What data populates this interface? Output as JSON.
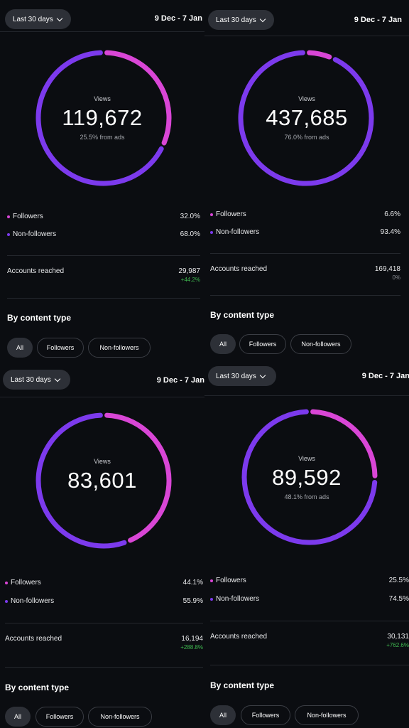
{
  "colors": {
    "followers": "#d946d6",
    "non_followers": "#7c3aed",
    "positive": "#3fb950",
    "neutral": "#8b8e94"
  },
  "panels": [
    {
      "range_label": "Last 30 days",
      "dates": "9 Dec - 7 Jan",
      "views_label": "Views",
      "views_value": "119,672",
      "ads_text": "25.5% from ads",
      "followers_fraction": 0.32,
      "followers_label": "Followers",
      "followers_pct": "32.0%",
      "non_followers_label": "Non-followers",
      "non_followers_pct": "68.0%",
      "accounts_label": "Accounts reached",
      "accounts_value": "29,987",
      "accounts_change": "+44.2%",
      "accounts_change_type": "positive",
      "by_content_label": "By content type",
      "filters": [
        "All",
        "Followers",
        "Non-followers"
      ]
    },
    {
      "range_label": "Last 30 days",
      "dates": "9 Dec - 7 Jan",
      "views_label": "Views",
      "views_value": "437,685",
      "ads_text": "76.0% from ads",
      "followers_fraction": 0.066,
      "followers_label": "Followers",
      "followers_pct": "6.6%",
      "non_followers_label": "Non-followers",
      "non_followers_pct": "93.4%",
      "accounts_label": "Accounts reached",
      "accounts_value": "169,418",
      "accounts_change": "0%",
      "accounts_change_type": "neutral",
      "by_content_label": "By content type",
      "filters": [
        "All",
        "Followers",
        "Non-followers"
      ]
    },
    {
      "range_label": "Last 30 days",
      "dates": "9 Dec - 7 Jan",
      "views_label": "Views",
      "views_value": "83,601",
      "ads_text": "",
      "followers_fraction": 0.441,
      "followers_label": "Followers",
      "followers_pct": "44.1%",
      "non_followers_label": "Non-followers",
      "non_followers_pct": "55.9%",
      "accounts_label": "Accounts reached",
      "accounts_value": "16,194",
      "accounts_change": "+288.8%",
      "accounts_change_type": "positive",
      "by_content_label": "By content type",
      "filters": [
        "All",
        "Followers",
        "Non-followers"
      ]
    },
    {
      "range_label": "Last 30 days",
      "dates": "9 Dec - 7 Jan",
      "views_label": "Views",
      "views_value": "89,592",
      "ads_text": "48.1% from ads",
      "followers_fraction": 0.255,
      "followers_label": "Followers",
      "followers_pct": "25.5%",
      "non_followers_label": "Non-followers",
      "non_followers_pct": "74.5%",
      "accounts_label": "Accounts reached",
      "accounts_value": "30,131",
      "accounts_change": "+762.6%",
      "accounts_change_type": "positive",
      "by_content_label": "By content type",
      "filters": [
        "All",
        "Followers",
        "Non-followers"
      ]
    }
  ]
}
